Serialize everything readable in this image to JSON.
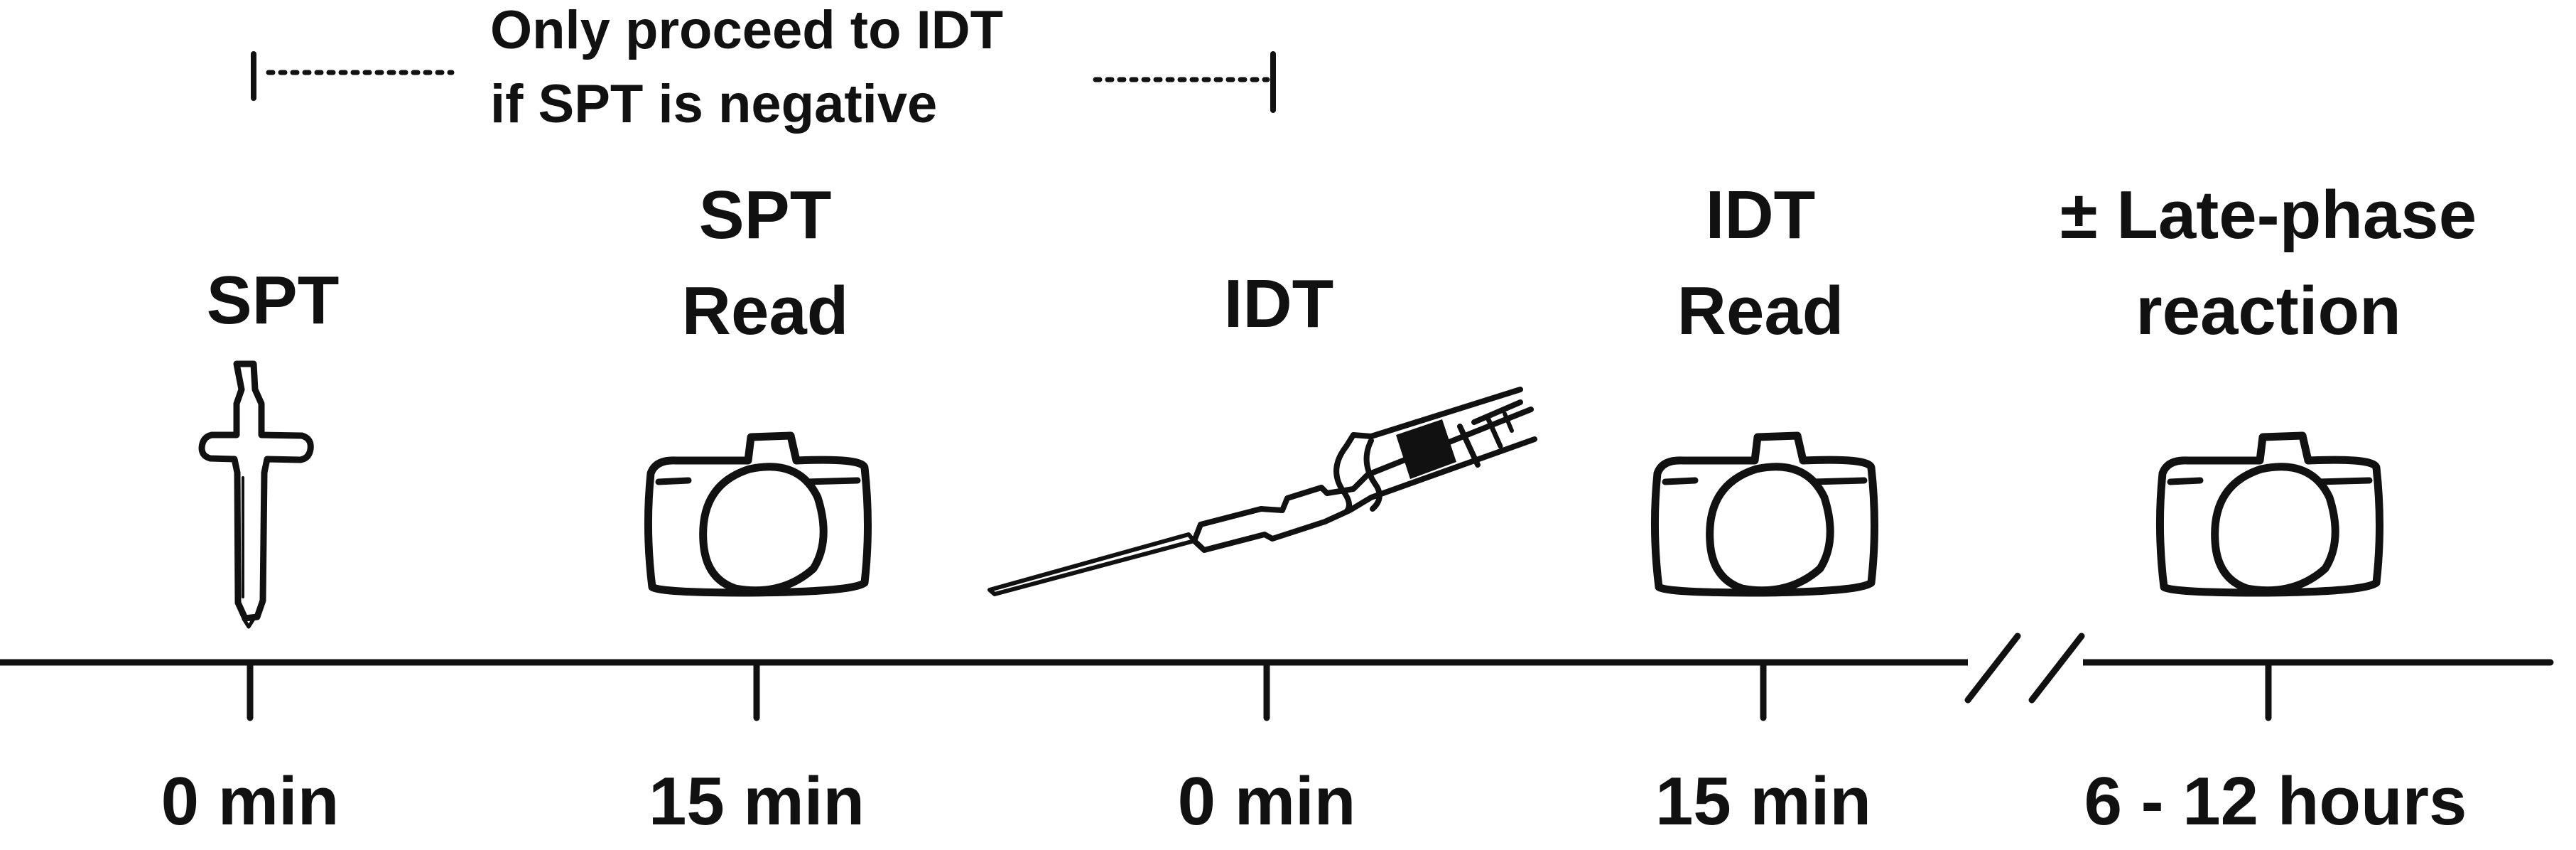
{
  "note": {
    "line1": "Only proceed to IDT",
    "line2": "if SPT is negative"
  },
  "steps": [
    {
      "label_lines": [
        "SPT"
      ],
      "time": "0 min",
      "icon": "lancet-icon"
    },
    {
      "label_lines": [
        "SPT",
        "Read"
      ],
      "time": "15 min",
      "icon": "camera-icon"
    },
    {
      "label_lines": [
        "IDT"
      ],
      "time": "0 min",
      "icon": "syringe-icon"
    },
    {
      "label_lines": [
        "IDT",
        "Read"
      ],
      "time": "15 min",
      "icon": "camera-icon"
    },
    {
      "label_lines": [
        "± Late-phase",
        "reaction"
      ],
      "time": "6 - 12 hours",
      "icon": "camera-icon"
    }
  ],
  "colors": {
    "ink": "#111111",
    "background": "#ffffff"
  }
}
